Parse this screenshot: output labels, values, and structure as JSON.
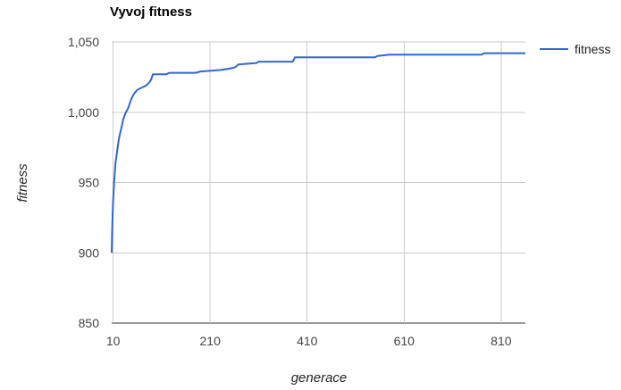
{
  "chart_data": {
    "type": "line",
    "title": "Vyvoj fitness",
    "xlabel": "generace",
    "ylabel": "fitness",
    "xlim": [
      7,
      860
    ],
    "ylim": [
      850,
      1050
    ],
    "x_ticks": [
      10,
      210,
      410,
      610,
      810
    ],
    "y_ticks": [
      850,
      900,
      950,
      1000,
      1050
    ],
    "y_tick_labels": [
      "850",
      "900",
      "950",
      "1,000",
      "1,050"
    ],
    "grid": true,
    "legend_position": "right",
    "series": [
      {
        "name": "fitness",
        "color": "#3366cc",
        "points": [
          [
            7,
            900
          ],
          [
            8,
            915
          ],
          [
            9,
            928
          ],
          [
            10,
            937
          ],
          [
            11,
            944
          ],
          [
            12,
            950
          ],
          [
            13,
            955
          ],
          [
            14,
            960
          ],
          [
            15,
            964
          ],
          [
            17,
            969
          ],
          [
            19,
            974
          ],
          [
            21,
            979
          ],
          [
            23,
            983
          ],
          [
            25,
            986
          ],
          [
            27,
            989
          ],
          [
            29,
            992
          ],
          [
            31,
            995
          ],
          [
            33,
            997
          ],
          [
            35,
            999
          ],
          [
            38,
            1001
          ],
          [
            41,
            1003
          ],
          [
            44,
            1006
          ],
          [
            47,
            1009
          ],
          [
            51,
            1012
          ],
          [
            55,
            1014
          ],
          [
            60,
            1016
          ],
          [
            66,
            1017
          ],
          [
            72,
            1018
          ],
          [
            78,
            1019
          ],
          [
            84,
            1021
          ],
          [
            88,
            1023
          ],
          [
            92,
            1027
          ],
          [
            120,
            1027
          ],
          [
            126,
            1028
          ],
          [
            180,
            1028
          ],
          [
            190,
            1029
          ],
          [
            230,
            1030
          ],
          [
            250,
            1031
          ],
          [
            262,
            1032
          ],
          [
            268,
            1034
          ],
          [
            305,
            1035
          ],
          [
            310,
            1036
          ],
          [
            380,
            1036
          ],
          [
            385,
            1039
          ],
          [
            550,
            1039
          ],
          [
            555,
            1040
          ],
          [
            580,
            1041
          ],
          [
            770,
            1041
          ],
          [
            775,
            1042
          ],
          [
            860,
            1042
          ]
        ]
      }
    ]
  }
}
